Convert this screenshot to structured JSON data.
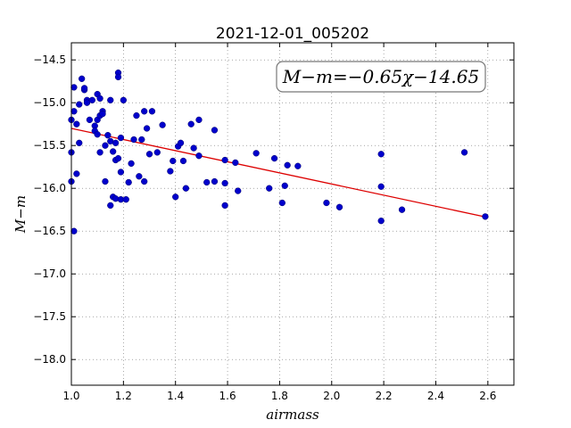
{
  "chart_data": {
    "type": "scatter",
    "title": "2021-12-01_005202",
    "xlabel": "airmass",
    "ylabel": "M−m",
    "xlim": [
      1.0,
      2.7
    ],
    "ylim": [
      -18.3,
      -14.3
    ],
    "y_inverted": true,
    "grid": true,
    "xticks": [
      "1.0",
      "1.2",
      "1.4",
      "1.6",
      "1.8",
      "2.0",
      "2.2",
      "2.4",
      "2.6"
    ],
    "yticks": [
      "−14.5",
      "−15.0",
      "−15.5",
      "−16.0",
      "−16.5",
      "−17.0",
      "−17.5",
      "−18.0"
    ],
    "point_color": "#0000cc",
    "fit_color": "#dd0000",
    "annotation": "M−m=−0.65χ−14.65",
    "fit": {
      "slope": -0.65,
      "intercept": -14.65,
      "x_range": [
        1.0,
        2.59
      ]
    },
    "series": [
      {
        "x": [
          1.0,
          1.0,
          1.0,
          1.01,
          1.01,
          1.01,
          1.02,
          1.02,
          1.03,
          1.03,
          1.04,
          1.05,
          1.05,
          1.06,
          1.06,
          1.07,
          1.08,
          1.09,
          1.09,
          1.1,
          1.1,
          1.1,
          1.11,
          1.11,
          1.11,
          1.12,
          1.12,
          1.13,
          1.13,
          1.14,
          1.15,
          1.15,
          1.15,
          1.16,
          1.16,
          1.17,
          1.17,
          1.17,
          1.18,
          1.18,
          1.18,
          1.19,
          1.19,
          1.19,
          1.2,
          1.21,
          1.22,
          1.23,
          1.24,
          1.25,
          1.26,
          1.27,
          1.28,
          1.28,
          1.29,
          1.3,
          1.31,
          1.33,
          1.35,
          1.38,
          1.39,
          1.4,
          1.41,
          1.42,
          1.43,
          1.44,
          1.46,
          1.47,
          1.49,
          1.49,
          1.52,
          1.55,
          1.55,
          1.59,
          1.59,
          1.59,
          1.63,
          1.64,
          1.71,
          1.76,
          1.78,
          1.81,
          1.82,
          1.83,
          1.87,
          1.98,
          2.03,
          2.19,
          2.19,
          2.19,
          2.27,
          2.51,
          2.59
        ],
        "y": [
          -15.2,
          -15.58,
          -15.92,
          -16.5,
          -14.82,
          -15.1,
          -15.25,
          -15.83,
          -15.47,
          -15.02,
          -14.72,
          -14.85,
          -14.83,
          -14.97,
          -15.0,
          -15.2,
          -14.97,
          -15.27,
          -15.33,
          -15.37,
          -15.2,
          -14.9,
          -15.15,
          -14.95,
          -15.58,
          -15.1,
          -15.13,
          -15.5,
          -15.92,
          -15.38,
          -15.45,
          -14.97,
          -16.2,
          -15.57,
          -16.1,
          -15.47,
          -15.67,
          -16.12,
          -15.65,
          -14.65,
          -14.7,
          -15.41,
          -15.81,
          -16.13,
          -14.97,
          -16.13,
          -15.93,
          -15.71,
          -15.43,
          -15.15,
          -15.86,
          -15.43,
          -15.92,
          -15.1,
          -15.3,
          -15.6,
          -15.1,
          -15.58,
          -15.26,
          -15.8,
          -15.68,
          -16.1,
          -15.51,
          -15.47,
          -15.68,
          -16.0,
          -15.25,
          -15.53,
          -15.2,
          -15.62,
          -15.93,
          -15.32,
          -15.92,
          -15.67,
          -15.94,
          -16.2,
          -15.7,
          -16.03,
          -15.59,
          -16.0,
          -15.65,
          -16.17,
          -15.97,
          -15.73,
          -15.74,
          -16.17,
          -16.22,
          -15.6,
          -15.98,
          -16.38,
          -16.25,
          -15.58,
          -16.33
        ]
      }
    ]
  }
}
